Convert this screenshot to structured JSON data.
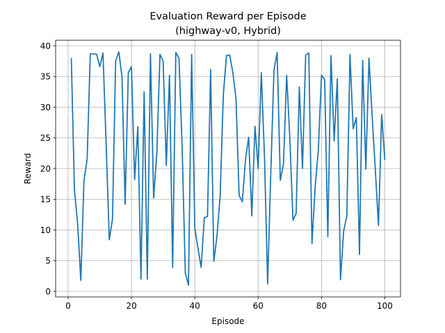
{
  "chart_data": {
    "type": "line",
    "title_line1": "Evaluation Reward per Episode",
    "title_line2": "(highway-v0, Hybrid)",
    "xlabel": "Episode",
    "ylabel": "Reward",
    "xlim": [
      -3.95,
      104.95
    ],
    "ylim": [
      -0.9,
      40.9
    ],
    "xticks": [
      0,
      20,
      40,
      60,
      80,
      100
    ],
    "yticks": [
      0,
      5,
      10,
      15,
      20,
      25,
      30,
      35,
      40
    ],
    "grid": true,
    "line_color": "#1f77b4",
    "series": [
      {
        "x": [
          1,
          2,
          3,
          4,
          5,
          6,
          7,
          8,
          9,
          10,
          11,
          12,
          13,
          14,
          15,
          16,
          17,
          18,
          19,
          20,
          21,
          22,
          23,
          24,
          25,
          26,
          27,
          28,
          29,
          30,
          31,
          32,
          33,
          34,
          35,
          36,
          37,
          38,
          39,
          40,
          41,
          42,
          43,
          44,
          45,
          46,
          47,
          48,
          49,
          50,
          51,
          52,
          53,
          54,
          55,
          56,
          57,
          58,
          59,
          60,
          61,
          62,
          63,
          64,
          65,
          66,
          67,
          68,
          69,
          70,
          71,
          72,
          73,
          74,
          75,
          76,
          77,
          78,
          79,
          80,
          81,
          82,
          83,
          84,
          85,
          86,
          87,
          88,
          89,
          90,
          91,
          92,
          93,
          94,
          95,
          96,
          97,
          98,
          99,
          100
        ],
        "y": [
          38.0,
          16.5,
          11.0,
          1.8,
          18.0,
          21.5,
          38.7,
          38.7,
          38.6,
          36.6,
          38.8,
          24.0,
          8.4,
          11.8,
          37.5,
          39.0,
          35.0,
          14.2,
          35.6,
          36.6,
          18.2,
          26.8,
          2.0,
          32.5,
          2.0,
          38.7,
          15.2,
          22.5,
          38.6,
          37.5,
          20.5,
          35.2,
          3.9,
          38.9,
          38.0,
          23.5,
          3.0,
          1.0,
          38.6,
          10.3,
          7.0,
          3.9,
          12.0,
          12.2,
          36.1,
          4.9,
          9.0,
          15.5,
          32.0,
          38.4,
          38.5,
          35.7,
          31.4,
          15.6,
          14.6,
          21.5,
          25.1,
          12.3,
          26.9,
          20.0,
          35.6,
          22.0,
          1.2,
          19.5,
          36.0,
          38.9,
          18.1,
          20.7,
          35.2,
          25.0,
          11.6,
          12.7,
          33.3,
          20.0,
          38.5,
          38.8,
          7.8,
          17.0,
          23.0,
          35.2,
          34.5,
          8.9,
          38.4,
          24.5,
          34.6,
          1.9,
          9.8,
          12.3,
          38.6,
          26.5,
          28.3,
          6.0,
          37.6,
          19.9,
          38.0,
          28.5,
          19.8,
          10.7,
          28.8,
          21.4
        ]
      }
    ]
  }
}
